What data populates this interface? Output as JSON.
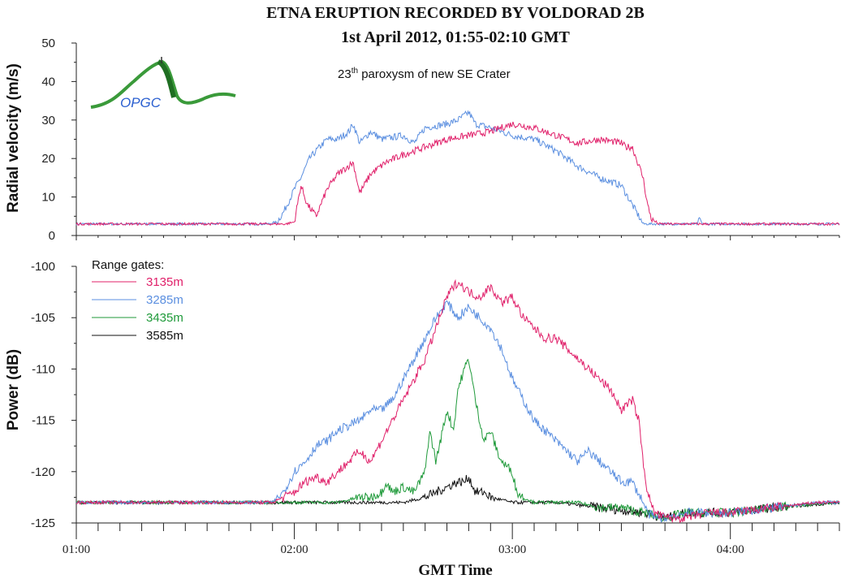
{
  "title": "ETNA ERUPTION RECORDED BY VOLDORAD 2B",
  "subtitle": "1st April 2012, 01:55-02:10 GMT",
  "annotation": {
    "main": "23",
    "superscript": "th",
    "rest": " paroxysm of new SE Crater"
  },
  "logo": {
    "text": "OPGC",
    "colors": {
      "mountain": "#3a9a3a",
      "text": "#2a5fd0"
    }
  },
  "xlabel": "GMT Time",
  "x_ticks": [
    "01:00",
    "02:00",
    "03:00",
    "04:00"
  ],
  "colors": {
    "3135m": "#e0206a",
    "3285m": "#5b8fe0",
    "3435m": "#1f9a3a",
    "3585m": "#111111"
  },
  "chart_data": [
    {
      "type": "line",
      "name": "velocity",
      "ylabel": "Radial velocity (m/s)",
      "ylim": [
        0,
        50
      ],
      "yticks": [
        0,
        10,
        20,
        30,
        40,
        50
      ],
      "xlim": [
        1.0,
        4.5
      ],
      "x_unit": "hours GMT",
      "series": [
        {
          "key": "3135m",
          "x": [
            1.0,
            1.92,
            1.96,
            2.0,
            2.03,
            2.06,
            2.1,
            2.15,
            2.2,
            2.27,
            2.3,
            2.35,
            2.42,
            2.5,
            2.6,
            2.7,
            2.8,
            2.9,
            3.0,
            3.1,
            3.2,
            3.3,
            3.4,
            3.5,
            3.52,
            3.55,
            3.6,
            3.62,
            3.64,
            3.66,
            3.67,
            4.5
          ],
          "values": [
            3,
            3,
            3,
            3.5,
            13,
            8,
            5,
            12,
            16,
            19,
            11,
            16,
            19,
            21,
            23,
            25,
            26,
            27,
            29,
            28,
            26,
            24,
            25,
            24,
            23,
            23,
            15,
            8,
            4,
            3.5,
            3,
            3
          ]
        },
        {
          "key": "3285m",
          "x": [
            1.0,
            1.88,
            1.92,
            1.95,
            2.0,
            2.03,
            2.07,
            2.1,
            2.15,
            2.2,
            2.25,
            2.27,
            2.3,
            2.35,
            2.4,
            2.5,
            2.55,
            2.6,
            2.7,
            2.75,
            2.8,
            2.83,
            2.9,
            3.0,
            3.1,
            3.2,
            3.3,
            3.4,
            3.5,
            3.55,
            3.6,
            3.62,
            3.64,
            3.85,
            3.86,
            3.87,
            4.5
          ],
          "values": [
            3,
            3,
            3.5,
            6,
            12,
            15,
            20,
            22,
            25,
            25,
            27,
            29,
            24,
            27,
            25,
            26,
            24,
            28,
            29,
            30,
            32,
            29,
            28,
            26,
            25,
            22,
            18,
            15,
            13,
            8,
            3,
            3,
            3,
            3,
            4.5,
            3,
            3
          ]
        }
      ]
    },
    {
      "type": "line",
      "name": "power",
      "ylabel": "Power (dB)",
      "ylim": [
        -125,
        -100
      ],
      "yticks": [
        -125,
        -120,
        -115,
        -110,
        -105,
        -100
      ],
      "xlim": [
        1.0,
        4.5
      ],
      "x_unit": "hours GMT",
      "legend": {
        "title": "Range gates:",
        "location": "top-left",
        "entries": [
          "3135m",
          "3285m",
          "3435m",
          "3585m"
        ]
      },
      "series": [
        {
          "key": "3135m",
          "x": [
            1.0,
            1.9,
            1.95,
            2.0,
            2.05,
            2.1,
            2.15,
            2.2,
            2.25,
            2.3,
            2.35,
            2.4,
            2.45,
            2.5,
            2.55,
            2.6,
            2.65,
            2.7,
            2.73,
            2.75,
            2.8,
            2.85,
            2.9,
            2.95,
            3.0,
            3.05,
            3.1,
            3.15,
            3.2,
            3.25,
            3.3,
            3.35,
            3.4,
            3.45,
            3.5,
            3.55,
            3.58,
            3.6,
            3.62,
            3.65,
            3.7,
            3.8,
            3.9,
            4.0,
            4.2,
            4.4,
            4.5
          ],
          "values": [
            -123,
            -123,
            -122.5,
            -122,
            -121,
            -120.5,
            -121,
            -120,
            -119,
            -118,
            -119,
            -117,
            -115,
            -113,
            -111,
            -109,
            -106,
            -103,
            -102,
            -101.5,
            -102.5,
            -103,
            -102,
            -103.5,
            -103,
            -105,
            -106,
            -107,
            -107,
            -108,
            -109,
            -110,
            -111,
            -112,
            -114,
            -113,
            -115,
            -119,
            -122,
            -124,
            -124.5,
            -124.5,
            -124,
            -124,
            -123.5,
            -123,
            -123
          ]
        },
        {
          "key": "3285m",
          "x": [
            1.0,
            1.9,
            1.95,
            2.0,
            2.05,
            2.1,
            2.15,
            2.2,
            2.25,
            2.3,
            2.35,
            2.4,
            2.45,
            2.5,
            2.55,
            2.6,
            2.65,
            2.7,
            2.75,
            2.8,
            2.85,
            2.9,
            2.95,
            3.0,
            3.05,
            3.1,
            3.15,
            3.2,
            3.25,
            3.3,
            3.35,
            3.4,
            3.45,
            3.5,
            3.55,
            3.6,
            3.62,
            3.65,
            3.7,
            3.8,
            4.0,
            4.2,
            4.4,
            4.5
          ],
          "values": [
            -123,
            -123,
            -122,
            -120,
            -119,
            -117.5,
            -117,
            -116,
            -115.5,
            -115,
            -114,
            -114,
            -113,
            -111,
            -109,
            -107,
            -105,
            -103.5,
            -105,
            -104,
            -105,
            -106,
            -108,
            -111,
            -113,
            -115,
            -116,
            -117,
            -118,
            -119,
            -118,
            -119,
            -120,
            -121,
            -121,
            -123,
            -124,
            -124.5,
            -124.5,
            -124,
            -124,
            -123.5,
            -123,
            -123
          ]
        },
        {
          "key": "3435m",
          "x": [
            1.0,
            2.0,
            2.1,
            2.2,
            2.3,
            2.35,
            2.4,
            2.42,
            2.45,
            2.5,
            2.55,
            2.6,
            2.62,
            2.65,
            2.7,
            2.73,
            2.75,
            2.78,
            2.8,
            2.83,
            2.87,
            2.9,
            2.93,
            2.95,
            3.0,
            3.02,
            3.05,
            3.1,
            3.2,
            3.3,
            3.4,
            3.5,
            3.6,
            3.7,
            3.8,
            4.0,
            4.2,
            4.5
          ],
          "values": [
            -123,
            -123,
            -123,
            -123,
            -122.5,
            -122.5,
            -122,
            -121,
            -122,
            -121.5,
            -122,
            -120,
            -116,
            -119,
            -114,
            -116,
            -112,
            -110,
            -109,
            -113,
            -117,
            -116,
            -118,
            -119,
            -120,
            -122,
            -122.5,
            -123,
            -123,
            -123,
            -123.5,
            -123.5,
            -124,
            -124.5,
            -124,
            -124,
            -123.5,
            -123
          ]
        },
        {
          "key": "3585m",
          "x": [
            1.0,
            2.0,
            2.3,
            2.5,
            2.6,
            2.65,
            2.7,
            2.75,
            2.78,
            2.8,
            2.83,
            2.87,
            2.9,
            3.0,
            3.2,
            3.4,
            3.6,
            3.7,
            3.8,
            4.0,
            4.2,
            4.5
          ],
          "values": [
            -123,
            -123,
            -123,
            -123,
            -122.5,
            -122,
            -121.5,
            -121,
            -121,
            -120.5,
            -122,
            -122,
            -122.5,
            -123,
            -123,
            -123.5,
            -124,
            -124.5,
            -124,
            -124,
            -123.5,
            -123
          ]
        }
      ]
    }
  ]
}
